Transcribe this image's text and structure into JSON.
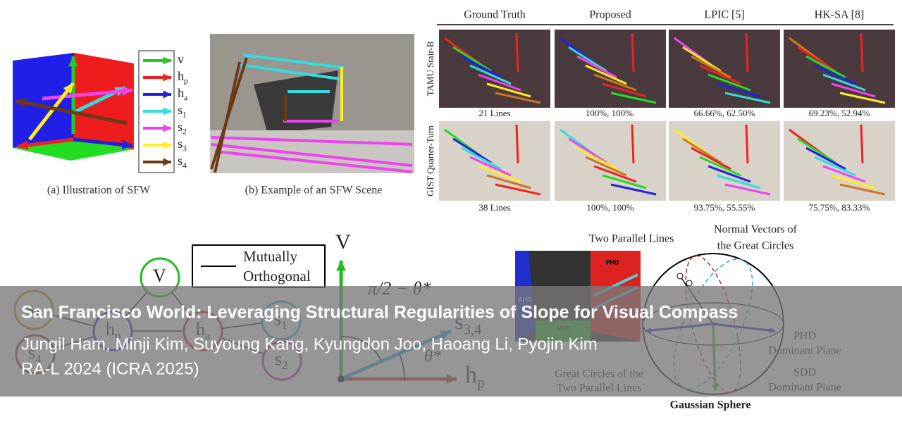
{
  "figure_a": {
    "caption": "(a) Illustration of SFW",
    "legend": [
      {
        "label": "v"
      },
      {
        "label": "h",
        "sub": "p"
      },
      {
        "label": "h",
        "sub": "a"
      },
      {
        "label": "s",
        "sub": "1"
      },
      {
        "label": "s",
        "sub": "2"
      },
      {
        "label": "s",
        "sub": "3"
      },
      {
        "label": "s",
        "sub": "4"
      }
    ]
  },
  "figure_b": {
    "caption": "(b) Example of an SFW Scene"
  },
  "comparison": {
    "columns": [
      "Ground Truth",
      "Proposed",
      "LPIC [5]",
      "HK-SA [8]"
    ],
    "rows": [
      {
        "label": "TAMU Stair-B",
        "captions": [
          "21 Lines",
          "100%, 100%.",
          "66.66%, 62.50%",
          "69.23%, 52.94%"
        ]
      },
      {
        "label": "GIST Quarter-Turn",
        "captions": [
          "38 Lines",
          "100%, 100%",
          "93.75%, 55.55%",
          "75.75%, 83.33%"
        ]
      }
    ]
  },
  "graph": {
    "legend": [
      "Mutually",
      "Orthogonal"
    ],
    "nodes": [
      {
        "label": "V"
      },
      {
        "label": "h",
        "sub": "p"
      },
      {
        "label": "h",
        "sub": "a"
      },
      {
        "label": "s",
        "sub": "1"
      },
      {
        "label": "s",
        "sub": "2"
      },
      {
        "label": "s",
        "sub": "3"
      },
      {
        "label": "s",
        "sub": "4"
      }
    ]
  },
  "angle_diagram": {
    "vertical": "V",
    "horizontal": {
      "label": "h",
      "sub": "p"
    },
    "slope": {
      "label": "s",
      "sub": "3,4"
    },
    "upper_angle": "π/2 − θ*",
    "lower_angle": "θ*"
  },
  "sphere_diagram": {
    "parallel_lines": "Two Parallel Lines",
    "normal_vectors": [
      "Normal Vectors of",
      "the Great Circles"
    ],
    "phd_plane": [
      "PHD",
      "Dominant Plane"
    ],
    "sdd_plane": [
      "SDD",
      "Dominant Plane"
    ],
    "great_circles": [
      "Great Circles of the",
      "Two Parallel Lines"
    ],
    "sphere": "Gaussian Sphere",
    "image_labels": [
      "PHD",
      "AHD",
      "VDD"
    ]
  },
  "banner": {
    "title": "San Francisco World: Leveraging Structural Regularities of Slope for Visual Compass",
    "authors": "Jungil Ham, Minji Kim, Suyoung Kang, Kyungdon Joo, Haoang Li, Pyojin Kim",
    "venue": "RA-L 2024 (ICRA 2025)"
  }
}
